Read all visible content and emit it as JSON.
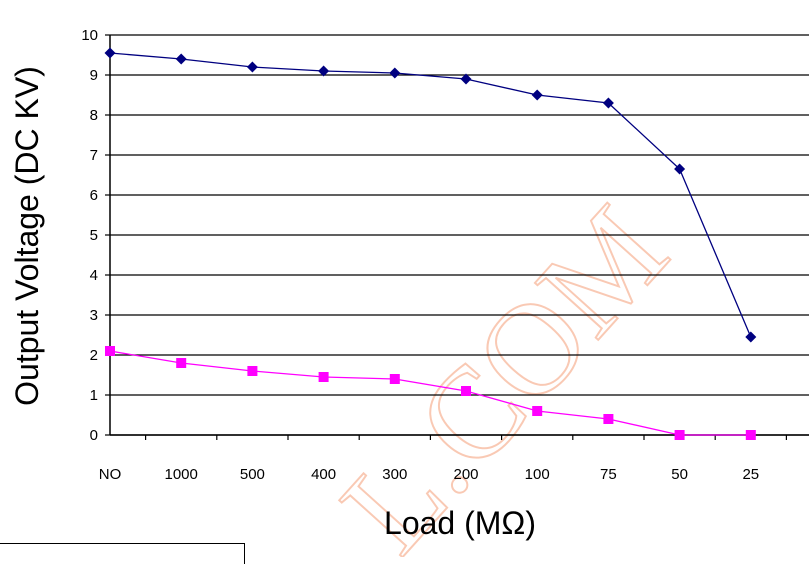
{
  "chart_data": {
    "type": "line",
    "categories": [
      "NO",
      "1000",
      "500",
      "400",
      "300",
      "200",
      "100",
      "75",
      "50",
      "25"
    ],
    "series": [
      {
        "values": [
          9.55,
          9.4,
          9.2,
          9.1,
          9.05,
          8.9,
          8.5,
          8.3,
          6.65,
          2.45
        ],
        "color": "#000080",
        "marker": "diamond"
      },
      {
        "values": [
          2.1,
          1.8,
          1.6,
          1.45,
          1.4,
          1.1,
          0.6,
          0.4,
          0.0,
          0.0
        ],
        "color": "#ff00ff",
        "marker": "square"
      }
    ],
    "title": "",
    "xlabel": "Load (MΩ)",
    "ylabel": "Output Voltage (DC KV)",
    "ylim": [
      0,
      10
    ],
    "yticks": [
      "0",
      "1",
      "2",
      "3",
      "4",
      "5",
      "6",
      "7",
      "8",
      "9",
      "10"
    ],
    "grid": true,
    "watermark": "L.COM"
  }
}
